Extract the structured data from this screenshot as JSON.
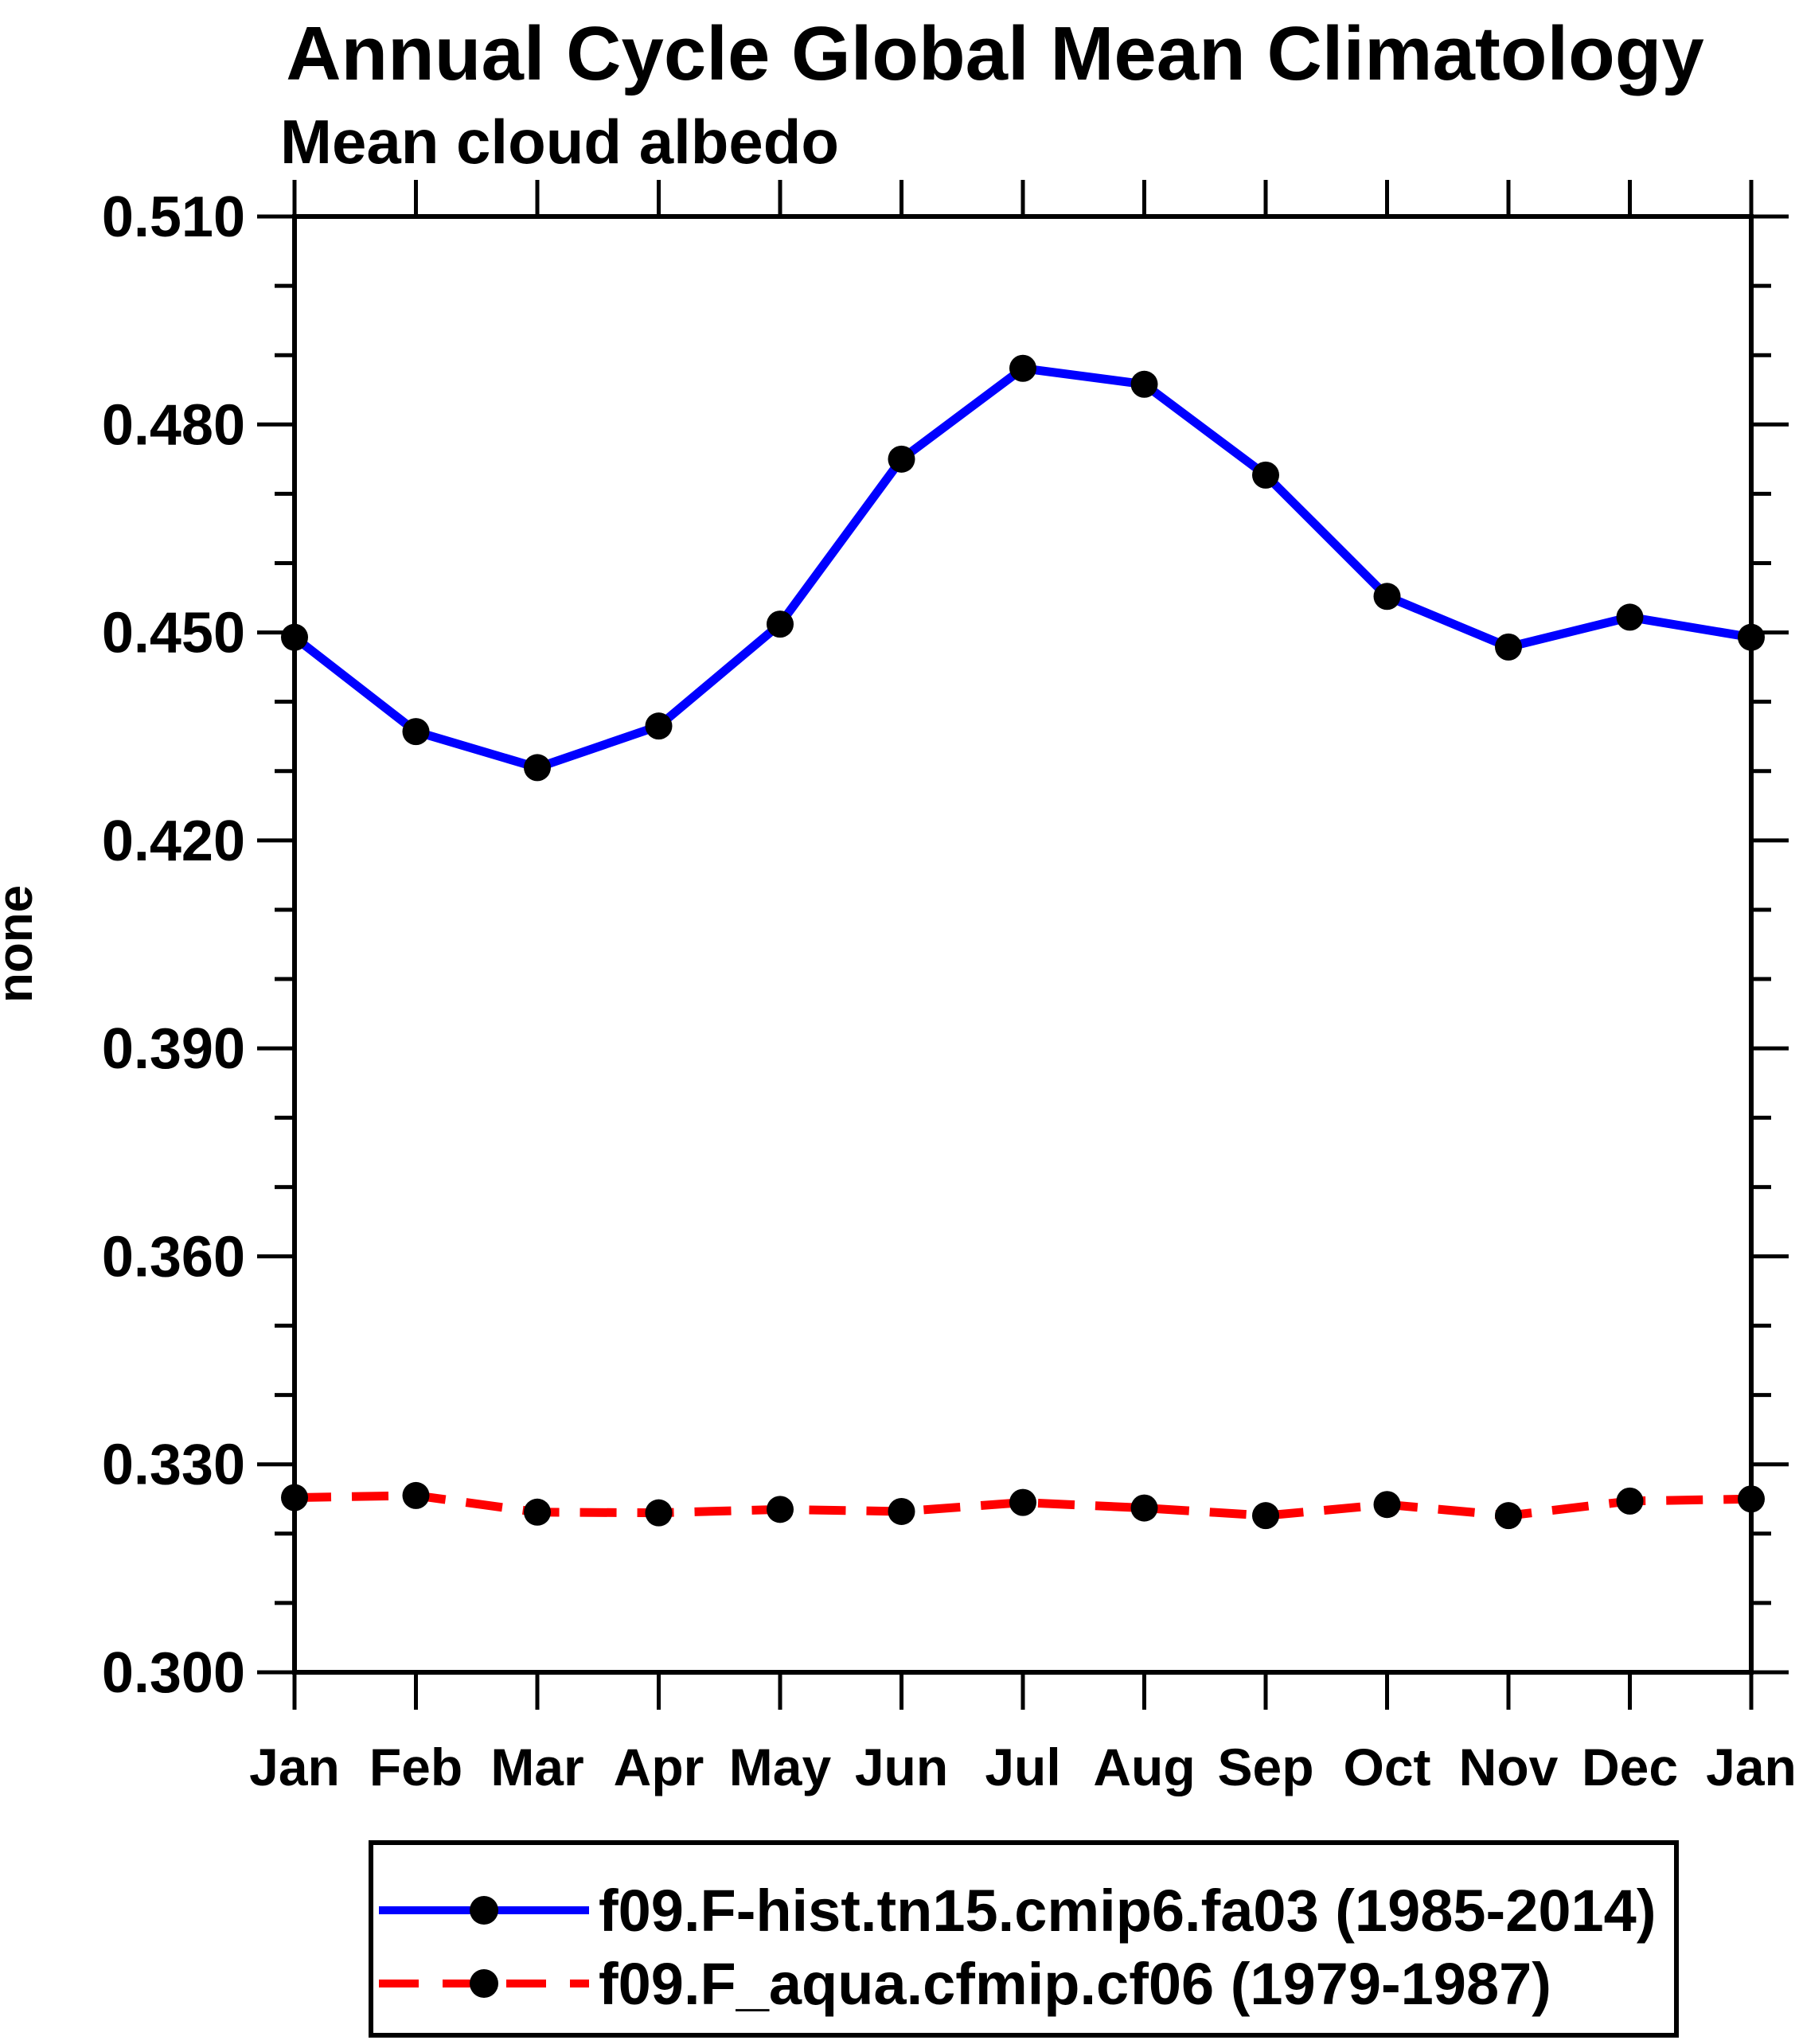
{
  "page": {
    "background": "#ffffff"
  },
  "chart_data": {
    "type": "line",
    "title": "Annual Cycle Global Mean Climatology",
    "subtitle": "Mean cloud albedo",
    "ylabel": "none",
    "xlabel": "",
    "x_tick_labels": [
      "Jan",
      "Feb",
      "Mar",
      "Apr",
      "May",
      "Jun",
      "Jul",
      "Aug",
      "Sep",
      "Oct",
      "Nov",
      "Dec",
      "Jan"
    ],
    "y_tick_labels": [
      "0.300",
      "0.330",
      "0.360",
      "0.390",
      "0.420",
      "0.450",
      "0.480",
      "0.510"
    ],
    "ylim": [
      0.3,
      0.51
    ],
    "y_minor_step": 0.01,
    "y_major_step": 0.03,
    "grid": false,
    "legend_position": "bottom",
    "axis_color": "#000000",
    "marker_color": "#000000",
    "series": [
      {
        "name": "f09.F-hist.tn15.cmip6.fa03 (1985-2014)",
        "color": "#0000ff",
        "line_style": "solid",
        "marker": "filled-circle",
        "values": [
          0.4493,
          0.4357,
          0.4305,
          0.4365,
          0.4512,
          0.475,
          0.4881,
          0.4858,
          0.4727,
          0.4552,
          0.4479,
          0.4522,
          0.4493
        ]
      },
      {
        "name": "f09.F_aqua.cfmip.cf06 (1979-1987)",
        "color": "#ff0000",
        "line_style": "dashed",
        "marker": "filled-circle",
        "values": [
          0.3252,
          0.3255,
          0.3231,
          0.323,
          0.3235,
          0.3232,
          0.3245,
          0.3237,
          0.3226,
          0.3242,
          0.3226,
          0.3247,
          0.325
        ]
      }
    ]
  }
}
